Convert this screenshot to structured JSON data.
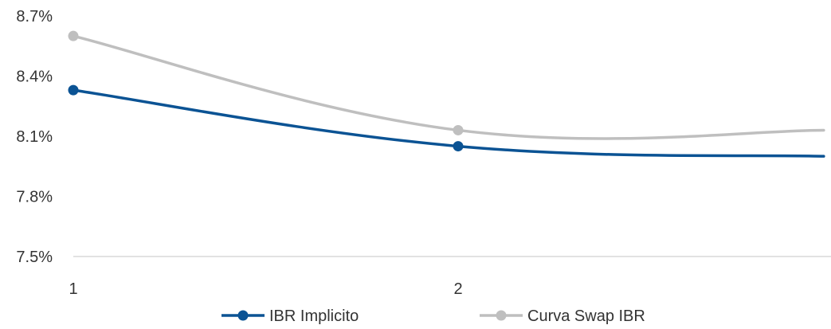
{
  "chart_data": {
    "type": "line",
    "title": "",
    "xlabel": "",
    "ylabel": "",
    "x": [
      1,
      2,
      2.95
    ],
    "x_tick_labels": [
      "1",
      "2"
    ],
    "y_tick_labels": [
      "8.7%",
      "8.4%",
      "8.1%",
      "7.8%",
      "7.5%"
    ],
    "ylim": [
      7.5,
      8.7
    ],
    "y_unit": "%",
    "grid": false,
    "legend": "bottom",
    "series": [
      {
        "name": "IBR Implicito",
        "color": "#0b5394",
        "values": [
          8.33,
          8.05,
          8.0
        ],
        "marker_points": [
          0,
          1
        ]
      },
      {
        "name": "Curva Swap IBR",
        "color": "#bfbfbf",
        "values": [
          8.6,
          8.13,
          8.13
        ],
        "marker_points": [
          0,
          1
        ]
      }
    ]
  }
}
